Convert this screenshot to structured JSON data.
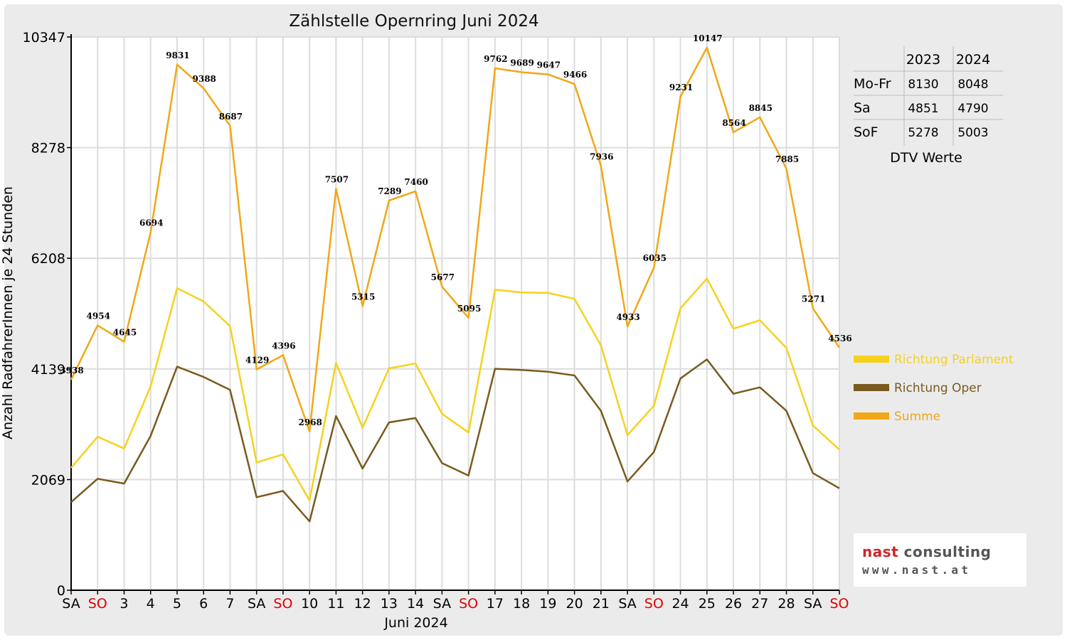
{
  "chart_data": {
    "type": "line",
    "title": "Zählstelle Opernring Juni 2024",
    "xlabel": "Juni 2024",
    "ylabel": "Anzahl RadfahrerInnen je 24 Stunden",
    "ylim": [
      0,
      10347
    ],
    "yticks": [
      "0",
      "2069",
      "4139",
      "6208",
      "8278",
      "10347"
    ],
    "categories": [
      "SA",
      "SO",
      "3",
      "4",
      "5",
      "6",
      "7",
      "SA",
      "SO",
      "10",
      "11",
      "12",
      "13",
      "14",
      "SA",
      "SO",
      "17",
      "18",
      "19",
      "20",
      "21",
      "SA",
      "SO",
      "24",
      "25",
      "26",
      "27",
      "28",
      "SA",
      "SO"
    ],
    "weekend_sunday_color": "#e00000",
    "grid": true,
    "series": [
      {
        "name": "Richtung Parlament",
        "color": "#f5d21e",
        "values": [
          2290,
          2870,
          2650,
          3810,
          5650,
          5400,
          4940,
          2390,
          2540,
          1680,
          4250,
          3040,
          4150,
          4240,
          3300,
          2950,
          5620,
          5570,
          5560,
          5450,
          4580,
          2900,
          3450,
          5270,
          5830,
          4890,
          5050,
          4530,
          3080,
          2630
        ]
      },
      {
        "name": "Richtung Oper",
        "color": "#7a5a1e",
        "values": [
          1648,
          2084,
          1995,
          2884,
          4181,
          3988,
          3747,
          1739,
          1856,
          1288,
          3257,
          2275,
          3139,
          3220,
          2377,
          2145,
          4142,
          4119,
          4087,
          4016,
          3356,
          2033,
          2585,
          3961,
          4317,
          3674,
          3795,
          3355,
          2191,
          1906
        ]
      },
      {
        "name": "Summe",
        "color": "#f0a818",
        "values": [
          3938,
          4954,
          4645,
          6694,
          9831,
          9388,
          8687,
          4129,
          4396,
          2968,
          7507,
          5315,
          7289,
          7460,
          5677,
          5095,
          9762,
          9689,
          9647,
          9466,
          7936,
          4933,
          6035,
          9231,
          10147,
          8564,
          8845,
          7885,
          5271,
          4536
        ]
      }
    ],
    "data_labels": [
      "3938",
      "4954",
      "4645",
      "6694",
      "9831",
      "9388",
      "8687",
      "4129",
      "4396",
      "2968",
      "7507",
      "5315",
      "7289",
      "7460",
      "5677",
      "5095",
      "9762",
      "9689",
      "9647",
      "9466",
      "7936",
      "4933",
      "6035",
      "9231",
      "10147",
      "8564",
      "8845",
      "7885",
      "5271",
      "4536"
    ],
    "legend": "right"
  },
  "dtv": {
    "headers": [
      "2023",
      "2024"
    ],
    "rows": [
      {
        "label": "Mo-Fr",
        "v2023": "8130",
        "v2024": "8048"
      },
      {
        "label": "Sa",
        "v2023": "4851",
        "v2024": "4790"
      },
      {
        "label": "SoF",
        "v2023": "5278",
        "v2024": "5003"
      }
    ],
    "caption": "DTV Werte"
  },
  "logo": {
    "word1": "nast",
    "word2": "consulting",
    "url": "www.nast.at"
  }
}
